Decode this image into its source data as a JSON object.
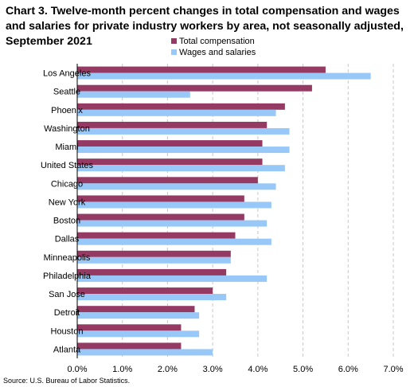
{
  "title": "Chart 3. Twelve-month percent changes in total compensation and wages and salaries for private industry workers by area, not seasonally adjusted, September 2021",
  "source": "Source: U.S. Bureau of Labor Statistics.",
  "colors": {
    "total": "#953a63",
    "wages": "#98c8f8",
    "grid": "#c8c8c8",
    "axis": "#000000"
  },
  "chart_data": {
    "type": "bar",
    "orientation": "horizontal",
    "categories": [
      "Los Angeles",
      "Seattle",
      "Phoenix",
      "Washington",
      "Miami",
      "United States",
      "Chicago",
      "New York",
      "Boston",
      "Dallas",
      "Minneapolis",
      "Philadelphia",
      "San Jose",
      "Detroit",
      "Houston",
      "Atlanta"
    ],
    "series": [
      {
        "name": "Total compensation",
        "values": [
          5.5,
          5.2,
          4.6,
          4.2,
          4.1,
          4.1,
          4.0,
          3.7,
          3.7,
          3.5,
          3.4,
          3.3,
          3.0,
          2.6,
          2.3,
          2.3
        ]
      },
      {
        "name": "Wages and salaries",
        "values": [
          6.5,
          2.5,
          4.4,
          4.7,
          4.7,
          4.6,
          4.4,
          4.3,
          4.2,
          4.3,
          3.4,
          4.2,
          3.3,
          2.7,
          2.7,
          3.0
        ]
      }
    ],
    "xlim": [
      0,
      7
    ],
    "xticks": [
      "0.0%",
      "1.0%",
      "2.0%",
      "3.0%",
      "4.0%",
      "5.0%",
      "6.0%",
      "7.0%"
    ],
    "grid": "vertical dashed",
    "legend": "top-right"
  }
}
